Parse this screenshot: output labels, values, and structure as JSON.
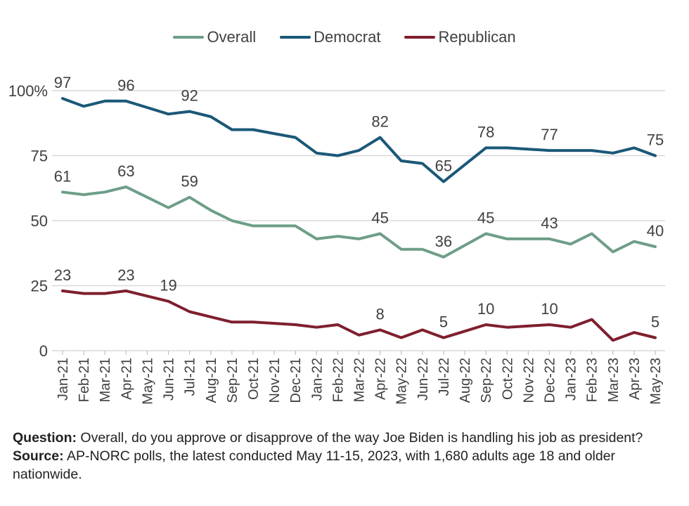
{
  "chart_data": {
    "type": "line",
    "categories": [
      "Jan-21",
      "Feb-21",
      "Mar-21",
      "Apr-21",
      "May-21",
      "Jun-21",
      "Jul-21",
      "Aug-21",
      "Sep-21",
      "Oct-21",
      "Nov-21",
      "Dec-21",
      "Jan-22",
      "Feb-22",
      "Mar-22",
      "Apr-22",
      "May-22",
      "Jun-22",
      "Jul-22",
      "Aug-22",
      "Sep-22",
      "Oct-22",
      "Nov-22",
      "Dec-22",
      "Jan-23",
      "Feb-23",
      "Mar-23",
      "Apr-23",
      "May-23"
    ],
    "ylim": [
      0,
      100
    ],
    "yticks": [
      0,
      25,
      50,
      75,
      100
    ],
    "ytick_labels": [
      "0",
      "25",
      "50",
      "75",
      "100%"
    ],
    "grid": true,
    "legend_position": "top",
    "series": [
      {
        "name": "Overall",
        "color": "#6e9e87",
        "values": [
          61,
          60,
          61,
          63,
          59,
          55,
          59,
          54,
          50,
          48,
          48,
          48,
          43,
          44,
          43,
          45,
          39,
          39,
          36,
          40.5,
          45,
          43,
          43,
          43,
          41,
          45,
          38,
          42,
          40
        ],
        "labels": {
          "0": "61",
          "3": "63",
          "6": "59",
          "15": "45",
          "18": "36",
          "20": "45",
          "23": "43",
          "28": "40"
        }
      },
      {
        "name": "Democrat",
        "color": "#1b5878",
        "values": [
          97,
          94,
          96,
          96,
          93.5,
          91,
          92,
          90,
          85,
          85,
          83.5,
          82,
          76,
          75,
          77,
          82,
          73,
          72,
          65,
          71.5,
          78,
          78,
          77.5,
          77,
          77,
          77,
          76,
          78,
          75
        ],
        "labels": {
          "0": "97",
          "3": "96",
          "6": "92",
          "15": "82",
          "18": "65",
          "20": "78",
          "23": "77",
          "28": "75"
        }
      },
      {
        "name": "Republican",
        "color": "#7f1f2e",
        "values": [
          23,
          22,
          22,
          23,
          21,
          19,
          15,
          13,
          11,
          11,
          10.5,
          10,
          9,
          10,
          6,
          8,
          5,
          8,
          5,
          7.5,
          10,
          9,
          9.5,
          10,
          9,
          12,
          4,
          7,
          5
        ],
        "labels": {
          "0": "23",
          "3": "23",
          "5": "19",
          "15": "8",
          "18": "5",
          "20": "10",
          "23": "10",
          "28": "5"
        }
      }
    ]
  },
  "notes": {
    "question_label": "Question:",
    "question_text": " Overall, do you approve or disapprove of the way Joe Biden is handling his job as president?",
    "source_label": "Source:",
    "source_text": " AP-NORC polls, the latest conducted May 11-15, 2023, with 1,680 adults age 18 and older nationwide."
  }
}
